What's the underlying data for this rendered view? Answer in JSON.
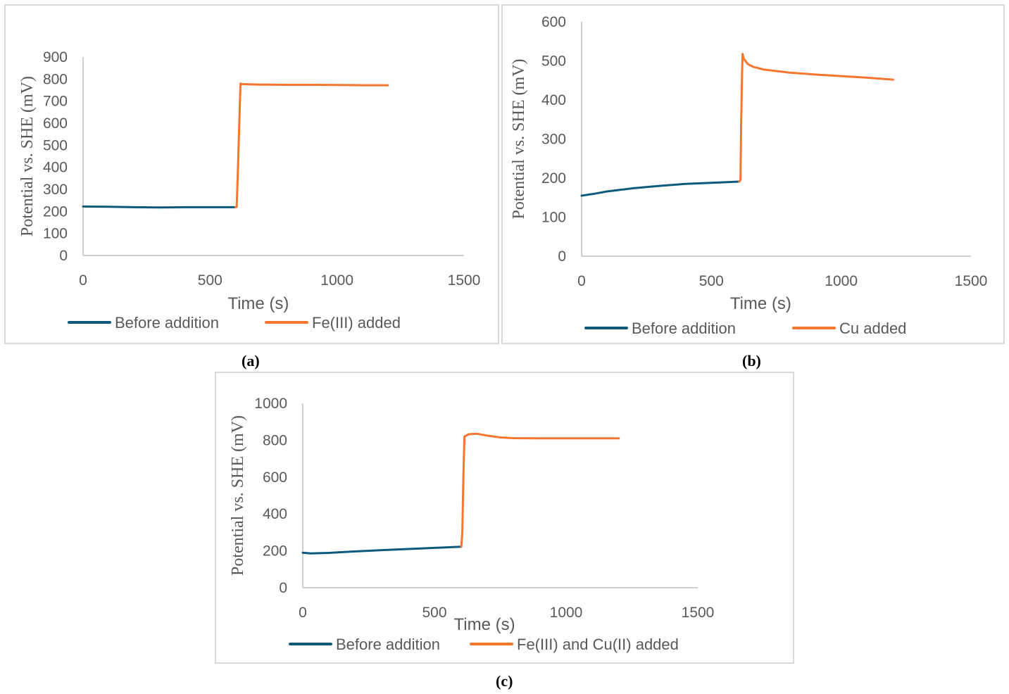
{
  "colors": {
    "before": "#0e5a7a",
    "after": "#f4762f",
    "axis": "#bfbfbf",
    "text": "#595959",
    "frame": "#d9d9d9"
  },
  "chart_data": [
    {
      "panel": "a",
      "caption": "(a)",
      "type": "line",
      "xlabel": "Time (s)",
      "ylabel": "Potential vs. SHE (mV)",
      "xlim": [
        0,
        1500
      ],
      "ylim": [
        0,
        900
      ],
      "xticks": [
        "0",
        "500",
        "1000",
        "1500"
      ],
      "yticks": [
        "0",
        "100",
        "200",
        "300",
        "400",
        "500",
        "600",
        "700",
        "800",
        "900"
      ],
      "grid": false,
      "legend": "bottom",
      "series": [
        {
          "name": "Before addition",
          "color_key": "before",
          "points": [
            [
              0,
              222
            ],
            [
              100,
              221
            ],
            [
              200,
              219
            ],
            [
              300,
              218
            ],
            [
              400,
              219
            ],
            [
              500,
              219
            ],
            [
              600,
              219
            ]
          ]
        },
        {
          "name": "Fe(III) added",
          "color_key": "after",
          "points": [
            [
              600,
              219
            ],
            [
              605,
              221
            ],
            [
              610,
              400
            ],
            [
              615,
              600
            ],
            [
              620,
              780
            ],
            [
              625,
              777
            ],
            [
              700,
              775
            ],
            [
              800,
              774
            ],
            [
              900,
              774
            ],
            [
              1000,
              773
            ],
            [
              1100,
              772
            ],
            [
              1200,
              772
            ]
          ]
        }
      ]
    },
    {
      "panel": "b",
      "caption": "(b)",
      "type": "line",
      "xlabel": "Time (s)",
      "ylabel": "Potential vs. SHE (mV)",
      "xlim": [
        0,
        1500
      ],
      "ylim": [
        0,
        600
      ],
      "xticks": [
        "0",
        "500",
        "1000",
        "1500"
      ],
      "yticks": [
        "0",
        "100",
        "200",
        "300",
        "400",
        "500",
        "600"
      ],
      "grid": false,
      "legend": "bottom",
      "series": [
        {
          "name": "Before addition",
          "color_key": "before",
          "points": [
            [
              0,
              155
            ],
            [
              50,
              160
            ],
            [
              100,
              166
            ],
            [
              200,
              174
            ],
            [
              300,
              180
            ],
            [
              400,
              185
            ],
            [
              500,
              188
            ],
            [
              607,
              191
            ]
          ]
        },
        {
          "name": "Cu added",
          "color_key": "after",
          "points": [
            [
              607,
              191
            ],
            [
              612,
              195
            ],
            [
              615,
              350
            ],
            [
              618,
              460
            ],
            [
              620,
              518
            ],
            [
              625,
              505
            ],
            [
              640,
              492
            ],
            [
              660,
              485
            ],
            [
              700,
              478
            ],
            [
              800,
              470
            ],
            [
              900,
              465
            ],
            [
              1000,
              461
            ],
            [
              1100,
              457
            ],
            [
              1200,
              452
            ]
          ]
        }
      ]
    },
    {
      "panel": "c",
      "caption": "(c)",
      "type": "line",
      "xlabel": "Time (s)",
      "ylabel": "Potential vs. SHE (mV)",
      "xlim": [
        0,
        1500
      ],
      "ylim": [
        0,
        1000
      ],
      "xticks": [
        "0",
        "500",
        "1000",
        "1500"
      ],
      "yticks": [
        "0",
        "200",
        "400",
        "600",
        "800",
        "1000"
      ],
      "grid": false,
      "legend": "bottom",
      "series": [
        {
          "name": "Before addition",
          "color_key": "before",
          "points": [
            [
              0,
              190
            ],
            [
              30,
              186
            ],
            [
              100,
              189
            ],
            [
              200,
              197
            ],
            [
              300,
              204
            ],
            [
              400,
              210
            ],
            [
              500,
              216
            ],
            [
              602,
              222
            ]
          ]
        },
        {
          "name": "Fe(III) and Cu(II) added",
          "color_key": "after",
          "points": [
            [
              602,
              222
            ],
            [
              606,
              300
            ],
            [
              610,
              600
            ],
            [
              614,
              820
            ],
            [
              630,
              832
            ],
            [
              660,
              835
            ],
            [
              700,
              825
            ],
            [
              750,
              815
            ],
            [
              800,
              811
            ],
            [
              900,
              810
            ],
            [
              1000,
              810
            ],
            [
              1100,
              810
            ],
            [
              1200,
              810
            ]
          ]
        }
      ]
    }
  ]
}
